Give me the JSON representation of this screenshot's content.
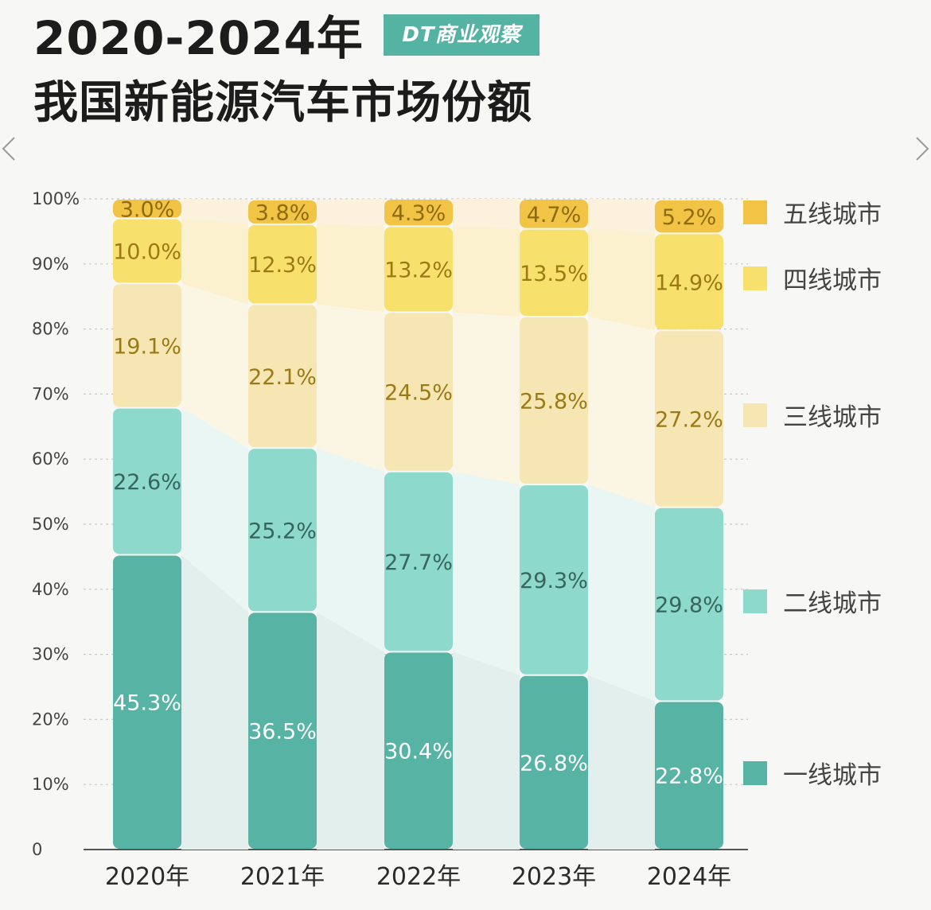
{
  "header": {
    "title_line1": "2020-2024年",
    "title_line2": "我国新能源汽车市场份额",
    "brand": "DT商业观察"
  },
  "chart_data": {
    "type": "bar",
    "stacked": true,
    "title": "2020-2024年 我国新能源汽车市场份额",
    "categories": [
      "2020年",
      "2021年",
      "2022年",
      "2023年",
      "2024年"
    ],
    "yticks": [
      "0",
      "10%",
      "20%",
      "30%",
      "40%",
      "50%",
      "60%",
      "70%",
      "80%",
      "90%",
      "100%"
    ],
    "ylim": [
      0,
      100
    ],
    "grid": true,
    "legend_position": "right",
    "series": [
      {
        "name": "一线城市",
        "color": "#57b3a4",
        "label_color": "#ffffff",
        "values": [
          45.3,
          36.5,
          30.4,
          26.8,
          22.8
        ],
        "labels": [
          "45.3%",
          "36.5%",
          "30.4%",
          "26.8%",
          "22.8%"
        ]
      },
      {
        "name": "二线城市",
        "color": "#8dd9cc",
        "label_color": "#37655d",
        "values": [
          22.6,
          25.2,
          27.7,
          29.3,
          29.8
        ],
        "labels": [
          "22.6%",
          "25.2%",
          "27.7%",
          "29.3%",
          "29.8%"
        ]
      },
      {
        "name": "三线城市",
        "color": "#f6e6b4",
        "label_color": "#9b7a16",
        "values": [
          19.1,
          22.1,
          24.5,
          25.8,
          27.2
        ],
        "labels": [
          "19.1%",
          "22.1%",
          "24.5%",
          "25.8%",
          "27.2%"
        ]
      },
      {
        "name": "四线城市",
        "color": "#f8e06d",
        "label_color": "#9b7a16",
        "values": [
          10.0,
          12.3,
          13.2,
          13.5,
          14.9
        ],
        "labels": [
          "10.0%",
          "12.3%",
          "13.2%",
          "13.5%",
          "14.9%"
        ]
      },
      {
        "name": "五线城市",
        "color": "#f2c445",
        "label_color": "#8e6b10",
        "values": [
          3.0,
          3.8,
          4.3,
          4.7,
          5.2
        ],
        "labels": [
          "3.0%",
          "3.8%",
          "4.3%",
          "4.7%",
          "5.2%"
        ]
      }
    ]
  }
}
